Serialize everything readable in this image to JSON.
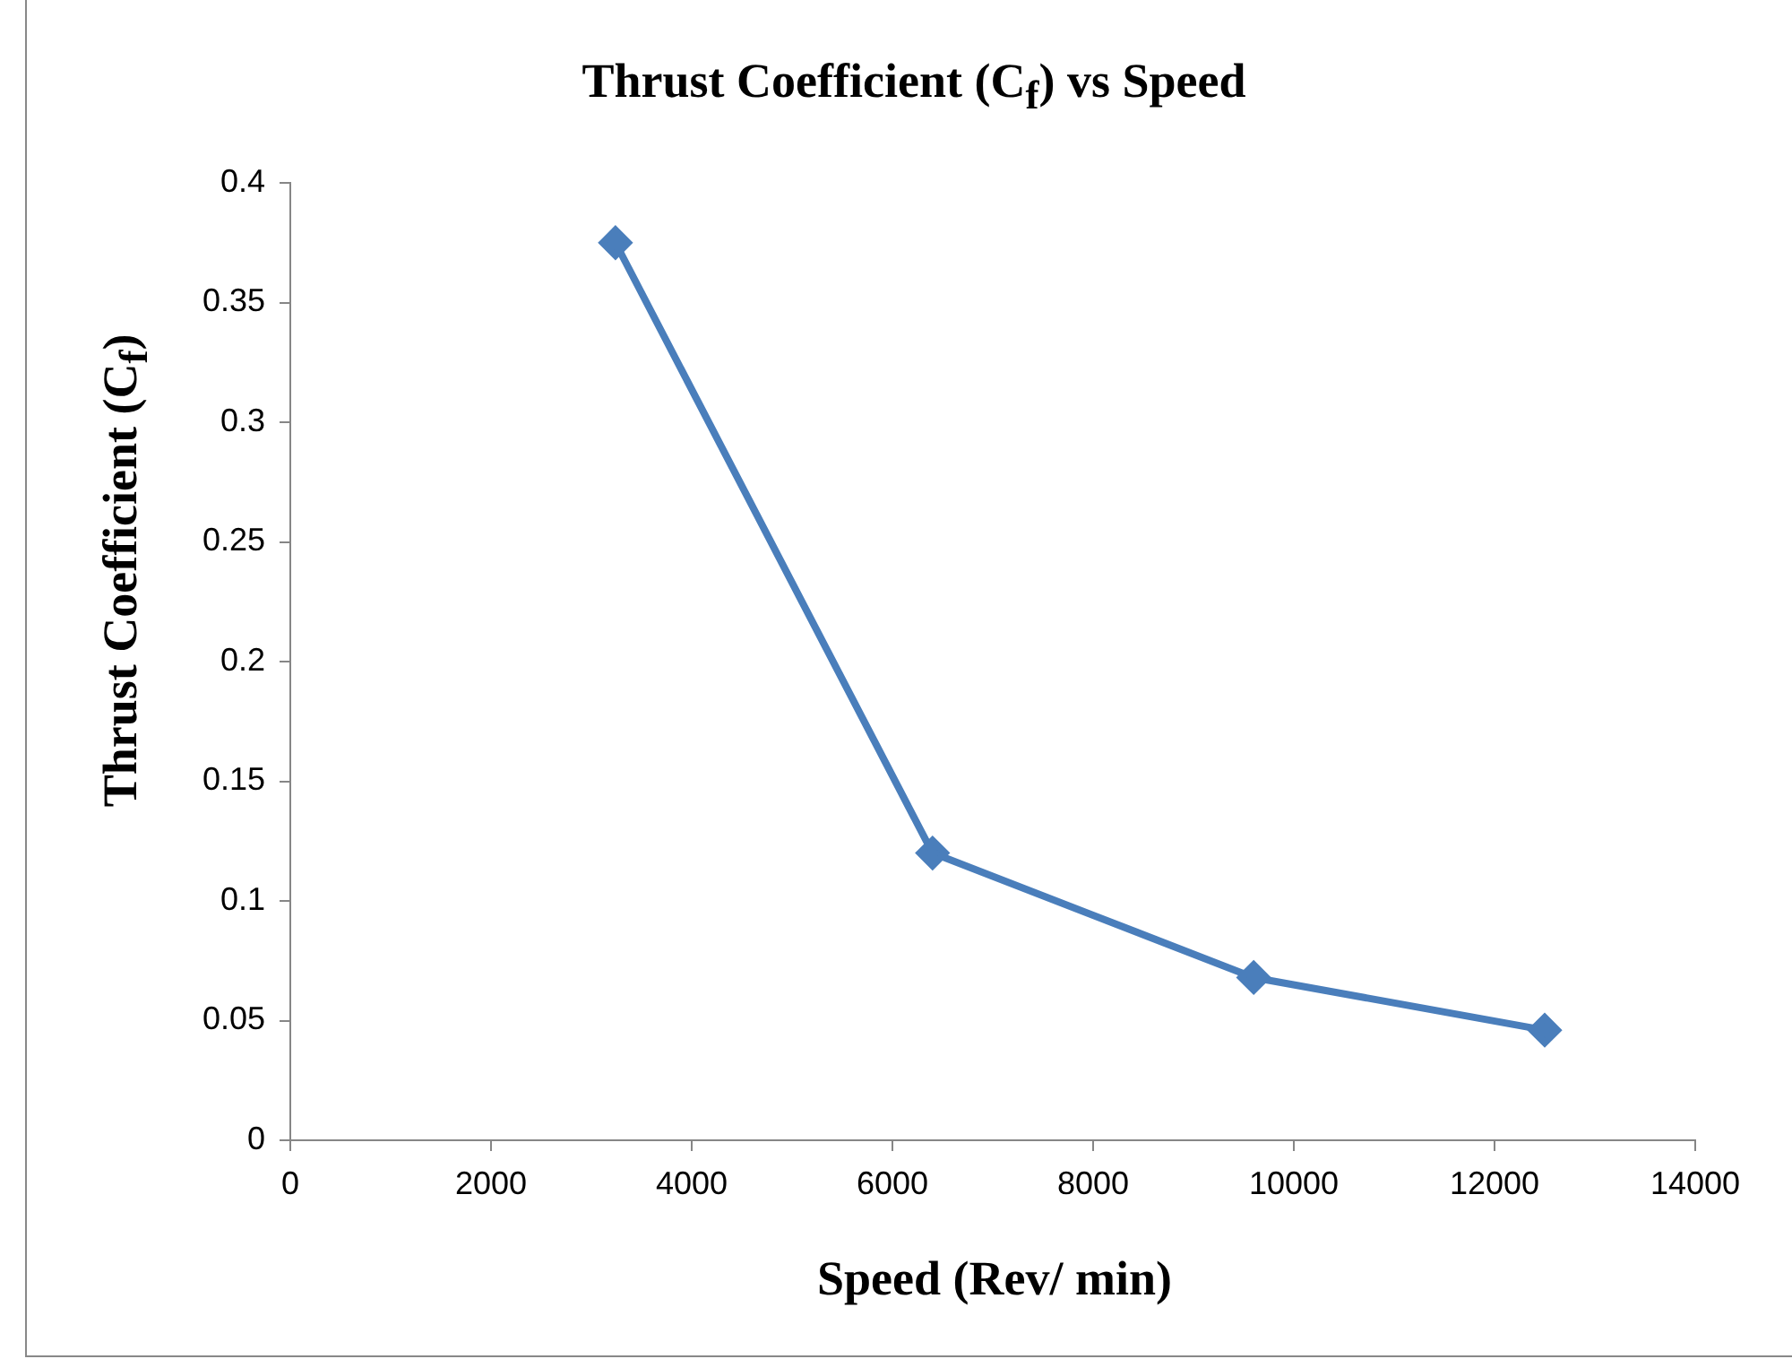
{
  "chart_data": {
    "type": "line",
    "title": "Thrust Coefficient (C$_{f}$)  vs Speed",
    "xlabel": "Speed (Rev/ min)",
    "ylabel": "Thrust Coefficient (C$_{f}$)",
    "x": [
      3240,
      6400,
      9600,
      12500
    ],
    "series": [
      {
        "color": "#4a7ebb",
        "values": [
          0.375,
          0.12,
          0.068,
          0.046
        ]
      }
    ],
    "xlim": [
      0,
      14000
    ],
    "xticks": [
      0,
      2000,
      4000,
      6000,
      8000,
      10000,
      12000,
      14000
    ],
    "ylim": [
      0,
      0.4
    ],
    "yticks": [
      0,
      0.05,
      0.1,
      0.15,
      0.2,
      0.25,
      0.3,
      0.35,
      0.4
    ],
    "grid": false,
    "legend": false,
    "marker": "diamond",
    "line_style": "solid"
  }
}
